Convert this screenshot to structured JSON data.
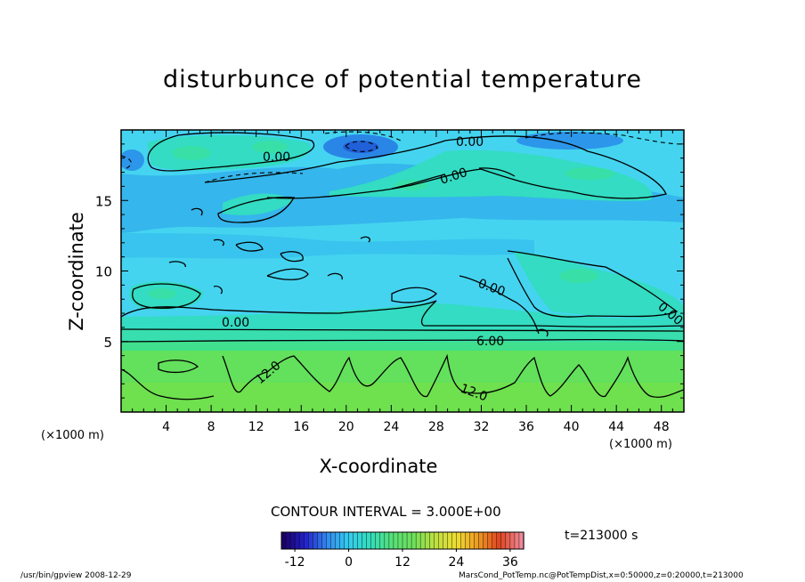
{
  "chart_data": {
    "type": "heatmap",
    "title": "disturbunce of potential temperature",
    "xlabel": "X-coordinate",
    "ylabel": "Z-coordinate",
    "x_unit_label": "(×1000 m)",
    "xlim": [
      0,
      50
    ],
    "ylim": [
      0,
      20
    ],
    "x_ticks": [
      4,
      8,
      12,
      16,
      20,
      24,
      28,
      32,
      36,
      40,
      44,
      48
    ],
    "y_ticks": [
      5,
      10,
      15
    ],
    "colorbar": {
      "range": [
        -15,
        39
      ],
      "ticks": [
        -12,
        0,
        12,
        24,
        36
      ],
      "colors": [
        "#1a0066",
        "#2222cc",
        "#3388ee",
        "#33ccee",
        "#33ddbb",
        "#55e07a",
        "#6fe05a",
        "#bde040",
        "#eedd33",
        "#ee9922",
        "#e04422",
        "#ee8899"
      ]
    },
    "contour_interval_label": "CONTOUR INTERVAL = 3.000E+00",
    "contour_labels": [
      "0.00",
      "0.00",
      "0.00",
      "0.00",
      "0.00",
      "6.00",
      "12.0",
      "12.0",
      "0.00"
    ],
    "field_bands": [
      {
        "z_range": [
          0,
          4.5
        ],
        "value": 13
      },
      {
        "z_range": [
          4.5,
          5.3
        ],
        "value": 9
      },
      {
        "z_range": [
          5.3,
          6.2
        ],
        "value": 5
      },
      {
        "z_range": [
          6.2,
          20
        ],
        "value": -1
      }
    ]
  },
  "time_label": "t=213000 s",
  "footer_left": "/usr/bin/gpview   2008-12-29",
  "footer_right": "MarsCond_PotTemp.nc@PotTempDist,x=0:50000,z=0:20000,t=213000"
}
